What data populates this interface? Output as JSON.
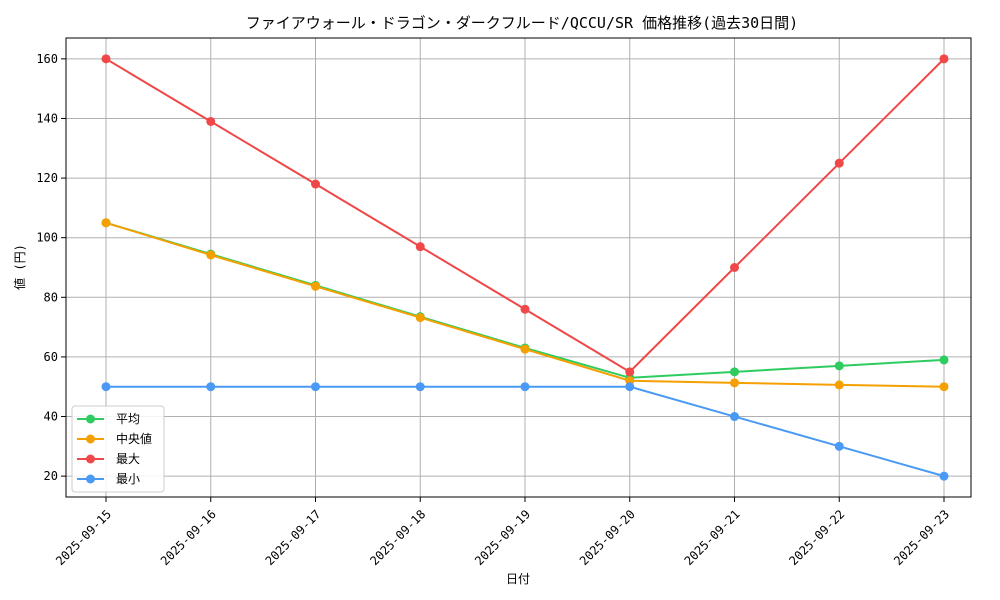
{
  "chart_data": {
    "type": "line",
    "title": "ファイアウォール・ドラゴン・ダークフルード/QCCU/SR 価格推移(過去30日間)",
    "xlabel": "日付",
    "ylabel": "値 (円)",
    "categories": [
      "2025-09-15",
      "2025-09-16",
      "2025-09-17",
      "2025-09-18",
      "2025-09-19",
      "2025-09-20",
      "2025-09-21",
      "2025-09-22",
      "2025-09-23"
    ],
    "yticks": [
      20,
      40,
      60,
      80,
      100,
      120,
      140,
      160
    ],
    "ylim": [
      13,
      167
    ],
    "grid": true,
    "legend_position": "lower-left",
    "series": [
      {
        "name": "平均",
        "color": "#2ecc5e",
        "values": [
          105,
          94.5,
          84,
          73.5,
          63,
          53,
          55,
          57,
          59
        ]
      },
      {
        "name": "中央値",
        "color": "#f5a000",
        "values": [
          105,
          94.2,
          83.7,
          73.2,
          62.6,
          52,
          51.3,
          50.6,
          50
        ]
      },
      {
        "name": "最大",
        "color": "#f04848",
        "values": [
          160,
          139,
          118,
          97,
          76,
          55,
          90,
          125,
          160
        ]
      },
      {
        "name": "最小",
        "color": "#4a9af5",
        "values": [
          50,
          50,
          50,
          50,
          50,
          50,
          40,
          30,
          20
        ]
      }
    ]
  }
}
